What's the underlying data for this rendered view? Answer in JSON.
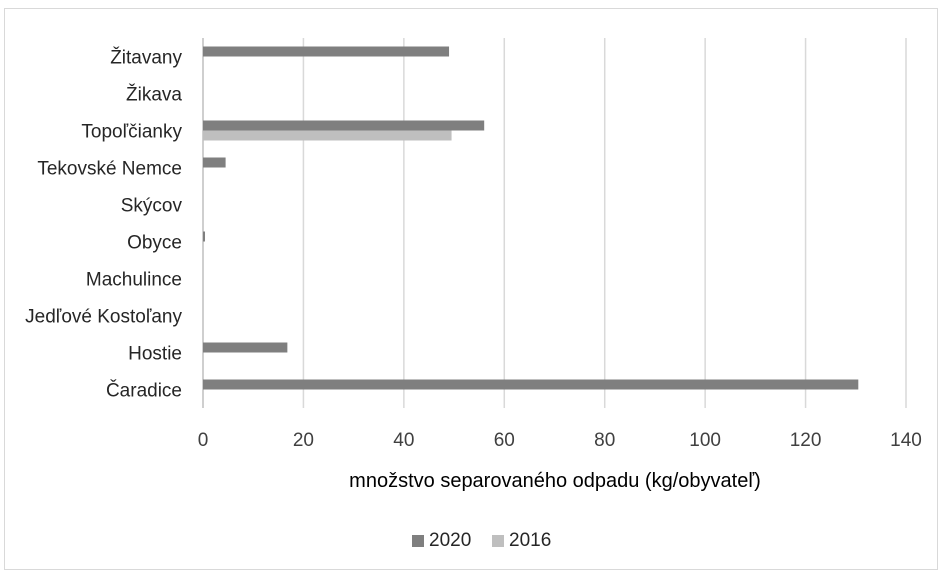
{
  "chart_data": {
    "type": "bar",
    "orientation": "horizontal",
    "title": "",
    "xlabel": "množstvo separovaného odpadu (kg/obyvateľ)",
    "ylabel": "",
    "xlim": [
      0,
      140
    ],
    "xticks": [
      0,
      20,
      40,
      60,
      80,
      100,
      120,
      140
    ],
    "grid": "vertical",
    "legend_position": "bottom",
    "categories": [
      "Čaradice",
      "Hostie",
      "Jedľové Kostoľany",
      "Machulince",
      "Obyce",
      "Skýcov",
      "Tekovské Nemce",
      "Topoľčianky",
      "Žikava",
      "Žitavany"
    ],
    "series": [
      {
        "name": "2020",
        "color": "#7f7f7f",
        "values": [
          130.5,
          16.8,
          0,
          0,
          0.4,
          0,
          4.5,
          56,
          0,
          49
        ]
      },
      {
        "name": "2016",
        "color": "#bfbfbf",
        "values": [
          0,
          0,
          0,
          0,
          0,
          0,
          0,
          49.5,
          0,
          0
        ]
      }
    ]
  }
}
